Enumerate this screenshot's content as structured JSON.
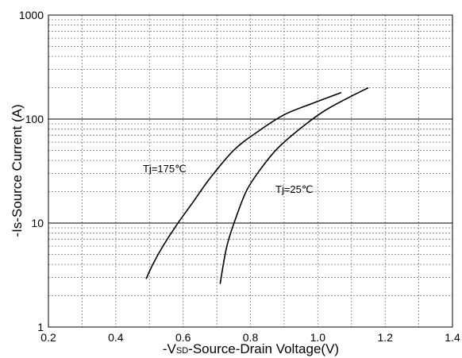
{
  "chart_data": {
    "type": "line",
    "title": "",
    "xlabel": "-VSD-Source-Drain Voltage(V)",
    "xlabel_parts": {
      "prefix": "-V",
      "subscript": "SD",
      "suffix": "-Source-Drain Voltage(V)"
    },
    "ylabel": "-Is-Source Current (A)",
    "xlim": [
      0.2,
      1.4
    ],
    "ylim": [
      1,
      1000
    ],
    "yscale": "log",
    "x_ticks": [
      "0.2",
      "0.4",
      "0.6",
      "0.8",
      "1.0",
      "1.2",
      "1.4"
    ],
    "y_ticks": [
      "1",
      "10",
      "100",
      "1000"
    ],
    "grid": true,
    "series": [
      {
        "name": "Tj=175℃",
        "x": [
          0.49,
          0.51,
          0.54,
          0.58,
          0.63,
          0.68,
          0.75,
          0.82,
          0.9,
          0.98,
          1.07
        ],
        "y": [
          2.9,
          4,
          6,
          9.5,
          16,
          27,
          50,
          75,
          110,
          140,
          180
        ]
      },
      {
        "name": "Tj=25℃",
        "x": [
          0.71,
          0.73,
          0.76,
          0.79,
          0.83,
          0.88,
          0.95,
          1.02,
          1.09,
          1.15
        ],
        "y": [
          2.6,
          6,
          12,
          21,
          33,
          52,
          82,
          120,
          160,
          200
        ]
      }
    ]
  }
}
